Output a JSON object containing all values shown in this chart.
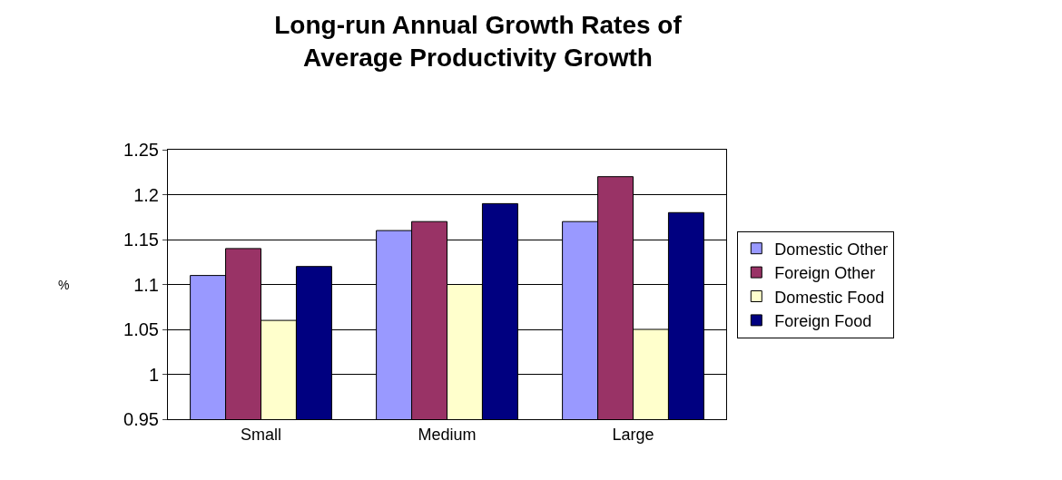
{
  "chart_data": {
    "type": "bar",
    "title": "Long-run Annual Growth Rates of\nAverage Productivity Growth",
    "ylabel": "%",
    "categories": [
      "Small",
      "Medium",
      "Large"
    ],
    "series": [
      {
        "name": "Domestic Other",
        "color": "#9999ff",
        "values": [
          1.11,
          1.16,
          1.17
        ]
      },
      {
        "name": "Foreign Other",
        "color": "#993366",
        "values": [
          1.14,
          1.17,
          1.22
        ]
      },
      {
        "name": "Domestic Food",
        "color": "#ffffcc",
        "values": [
          1.06,
          1.1,
          1.05
        ]
      },
      {
        "name": "Foreign Food",
        "color": "#000080",
        "values": [
          1.12,
          1.19,
          1.18
        ]
      }
    ],
    "ylim": [
      0.95,
      1.25
    ],
    "yticks": [
      0.95,
      1,
      1.05,
      1.1,
      1.15,
      1.2,
      1.25
    ],
    "grid": "y",
    "legend": "right"
  }
}
